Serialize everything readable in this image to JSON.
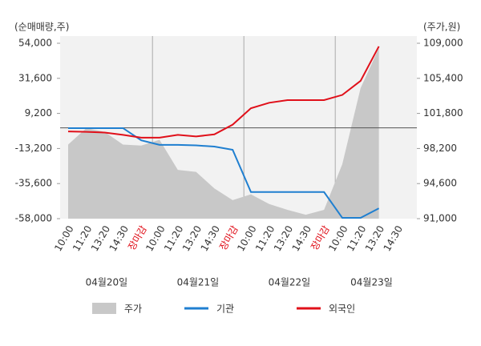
{
  "chart_data": {
    "type": "line",
    "y_label": "(순매매량,주)",
    "y2_label": "(주가,원)",
    "categories": [
      "10:00",
      "11:20",
      "13:20",
      "14:30",
      "장마감",
      "10:00",
      "11:20",
      "13:20",
      "14:30",
      "장마감",
      "10:00",
      "11:20",
      "13:20",
      "14:30",
      "장마감",
      "10:00",
      "11:20",
      "13:20",
      "14:30"
    ],
    "dates": [
      "04월20일",
      "04월21일",
      "04월22일",
      "04월23일"
    ],
    "ylim": [
      -58000,
      54000
    ],
    "yticks": [
      {
        "value": 54000,
        "label": "54,000"
      },
      {
        "value": 31600,
        "label": "31,600"
      },
      {
        "value": 9200,
        "label": "9,200"
      },
      {
        "value": -13200,
        "label": "-13,200"
      },
      {
        "value": -35600,
        "label": "-35,600"
      },
      {
        "value": -58000,
        "label": "-58,000"
      }
    ],
    "y2lim": [
      91000,
      109000
    ],
    "y2ticks": [
      {
        "value": 109000,
        "label": "109,000"
      },
      {
        "value": 105400,
        "label": "105,400"
      },
      {
        "value": 101800,
        "label": "101,800"
      },
      {
        "value": 98200,
        "label": "98,200"
      },
      {
        "value": 94600,
        "label": "94,600"
      },
      {
        "value": 91000,
        "label": "91,000"
      }
    ],
    "series": [
      {
        "name": "주가",
        "type": "area",
        "axis": "y2",
        "color": "#c8c8c8",
        "values": [
          98600,
          100300,
          99900,
          98600,
          98500,
          99100,
          96000,
          95800,
          94100,
          92900,
          93500,
          92500,
          91900,
          91400,
          91900,
          96600,
          104400,
          108500,
          null
        ]
      },
      {
        "name": "기관",
        "color": "#1f7fd0",
        "values": [
          -200,
          -200,
          -200,
          -200,
          -8000,
          -10900,
          -10900,
          -11200,
          -12000,
          -14000,
          -41000,
          -41000,
          -41000,
          -41000,
          -41000,
          -57500,
          -57500,
          -51400,
          null
        ]
      },
      {
        "name": "외국인",
        "color": "#e0101a",
        "values": [
          -2300,
          -2600,
          -3000,
          -4500,
          -6300,
          -6300,
          -4500,
          -5500,
          -4200,
          2000,
          12500,
          16000,
          17700,
          17700,
          17700,
          21000,
          30000,
          52000,
          null
        ]
      }
    ]
  }
}
